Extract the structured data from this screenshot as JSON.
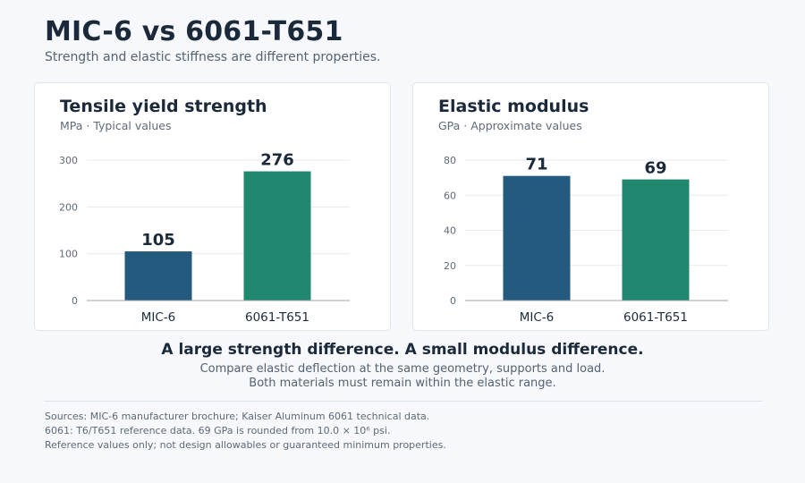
{
  "page": {
    "title": "MIC-6 vs 6061-T651",
    "subtitle": "Strength and elastic stiffness are different properties."
  },
  "colors": {
    "mic6": "#245a7e",
    "t651": "#22876f",
    "grid": "#e6eaef",
    "axis": "#9aa4ae"
  },
  "chart_data": [
    {
      "type": "bar",
      "title": "Tensile yield strength",
      "subtitle": "MPa · Typical values",
      "categories": [
        "MIC-6",
        "6061-T651"
      ],
      "values": [
        105,
        276
      ],
      "value_labels": [
        "105",
        "276"
      ],
      "yticks": [
        0,
        100,
        200,
        300
      ],
      "ytick_labels": [
        "0",
        "100",
        "200",
        "300"
      ],
      "ylim": [
        0,
        300
      ],
      "grid": true
    },
    {
      "type": "bar",
      "title": "Elastic modulus",
      "subtitle": "GPa · Approximate values",
      "categories": [
        "MIC-6",
        "6061-T651"
      ],
      "values": [
        71,
        69
      ],
      "value_labels": [
        "71",
        "69"
      ],
      "yticks": [
        0,
        20,
        40,
        60,
        80
      ],
      "ytick_labels": [
        "0",
        "20",
        "40",
        "60",
        "80"
      ],
      "ylim": [
        0,
        80
      ],
      "grid": true
    }
  ],
  "takeaway": {
    "headline": "A large strength difference. A small modulus difference.",
    "line1": "Compare elastic deflection at the same geometry, supports and load.",
    "line2": "Both materials must remain within the elastic range."
  },
  "sources": {
    "line1": "Sources: MIC-6 manufacturer brochure; Kaiser Aluminum 6061 technical data.",
    "line2": "6061: T6/T651 reference data. 69 GPa is rounded from 10.0 × 10⁶ psi.",
    "line3": "Reference values only; not design allowables or guaranteed minimum properties."
  }
}
